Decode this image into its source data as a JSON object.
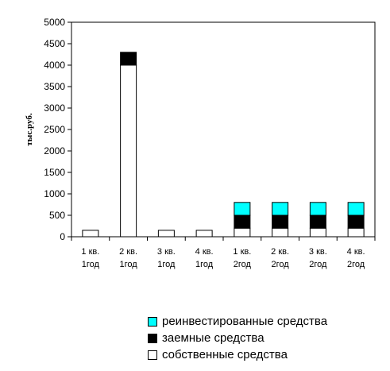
{
  "chart_data": {
    "type": "bar",
    "stacked": true,
    "ylabel": "тыс.руб.",
    "ylim": [
      0,
      5000
    ],
    "yticks": [
      0,
      500,
      1000,
      1500,
      2000,
      2500,
      3000,
      3500,
      4000,
      4500,
      5000
    ],
    "grid": false,
    "legend_position": "bottom-right",
    "categories": [
      [
        "1 кв.",
        "1год"
      ],
      [
        "2 кв.",
        "1год"
      ],
      [
        "3 кв.",
        "1год"
      ],
      [
        "4 кв.",
        "1год"
      ],
      [
        "1 кв.",
        "2год"
      ],
      [
        "2 кв.",
        "2год"
      ],
      [
        "3 кв.",
        "2год"
      ],
      [
        "4 кв.",
        "2год"
      ]
    ],
    "series": [
      {
        "name": "собственные средства",
        "color": "#ffffff",
        "values": [
          150,
          4000,
          150,
          150,
          200,
          200,
          200,
          200
        ]
      },
      {
        "name": "заемные средства",
        "color": "#000000",
        "values": [
          0,
          300,
          0,
          0,
          300,
          300,
          300,
          300
        ]
      },
      {
        "name": "реинвестированные средства",
        "color": "#00ffff",
        "values": [
          0,
          0,
          0,
          0,
          300,
          300,
          300,
          300
        ]
      }
    ],
    "legend_order": [
      2,
      1,
      0
    ]
  }
}
